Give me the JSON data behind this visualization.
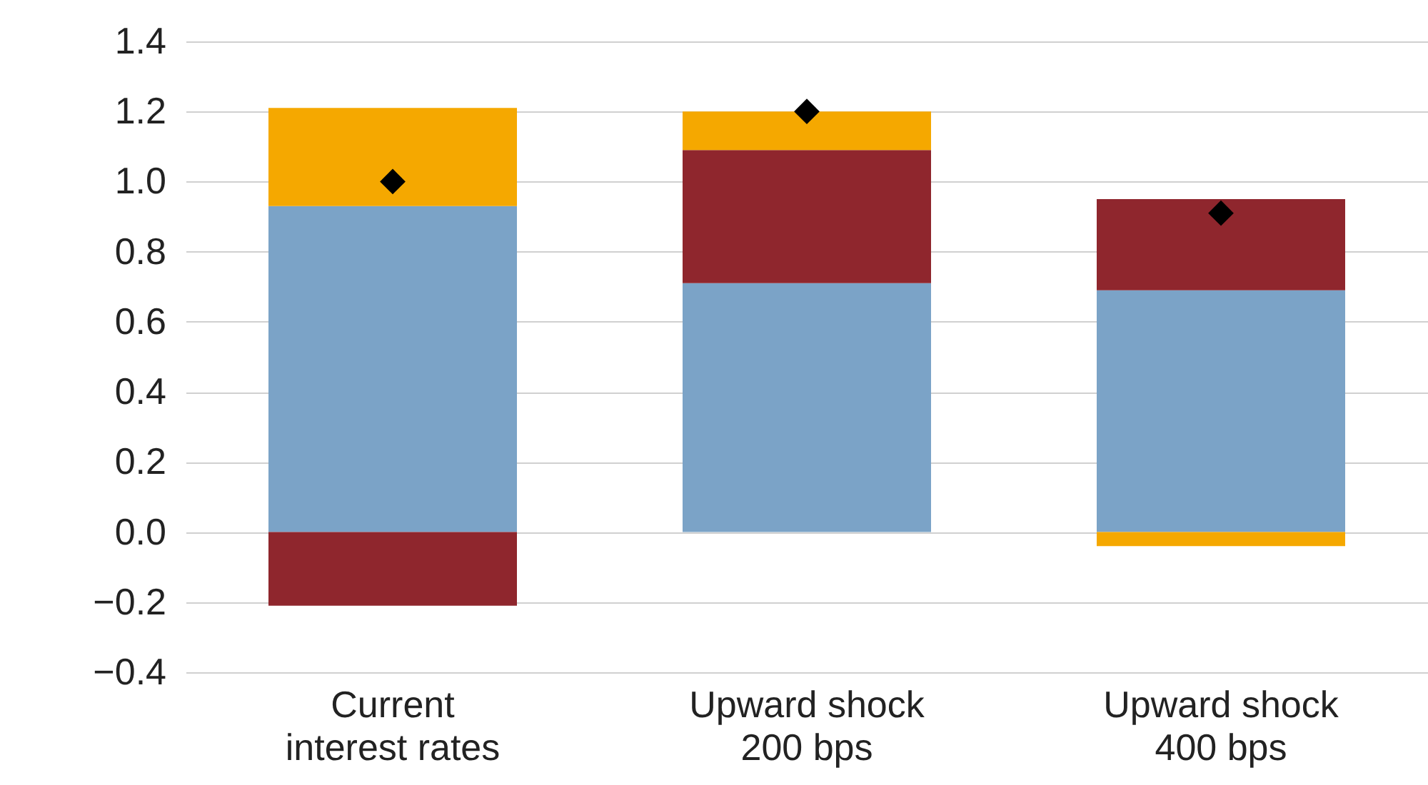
{
  "chart_data": {
    "type": "bar",
    "stacked": true,
    "categories": [
      "Current interest rates",
      "Upward shock 200 bps",
      "Upward shock 400 bps"
    ],
    "series": [
      {
        "color": "#7ba3c7",
        "values": [
          0.93,
          0.71,
          0.69
        ]
      },
      {
        "color": "#8f262d",
        "values": [
          -0.21,
          0.38,
          0.26
        ]
      },
      {
        "color": "#f5a800",
        "values": [
          0.28,
          0.11,
          -0.04
        ]
      },
      {
        "type": "scatter",
        "color": "#000000",
        "marker": "diamond",
        "x": [
          "Current interest rates",
          "Upward shock 200 bps",
          "Upward shock 400 bps"
        ],
        "values": [
          1.0,
          1.2,
          0.91
        ]
      }
    ],
    "ylim": [
      -0.4,
      1.4
    ],
    "yticks": [
      {
        "value": -0.4,
        "label": "−0.4"
      },
      {
        "value": -0.2,
        "label": "−0.2"
      },
      {
        "value": 0,
        "label": "0.0"
      },
      {
        "value": 0.2,
        "label": "0.2"
      },
      {
        "value": 0.4,
        "label": "0.4"
      },
      {
        "value": 0.6,
        "label": "0.6"
      },
      {
        "value": 0.8,
        "label": "0.8"
      },
      {
        "value": 1,
        "label": "1.0"
      },
      {
        "value": 1.2,
        "label": "1.2"
      },
      {
        "value": 1.4,
        "label": "1.4"
      }
    ],
    "grid": "y",
    "legend": false
  }
}
